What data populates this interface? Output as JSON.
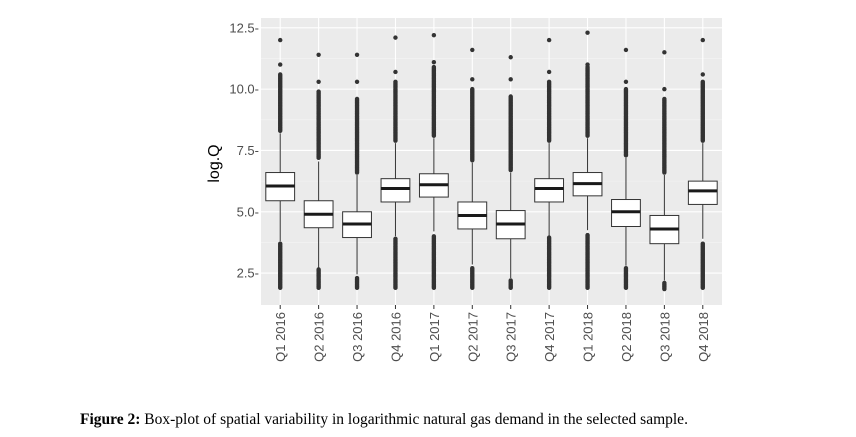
{
  "chart_data": {
    "type": "box",
    "ylabel": "log.Q",
    "xlabel": "",
    "ylim": [
      1.2,
      12.9
    ],
    "yticks": [
      2.5,
      5.0,
      7.5,
      10.0,
      12.5
    ],
    "ytick_labels": [
      "2.5-",
      "5.0-",
      "7.5-",
      "10.0-",
      "12.5-"
    ],
    "grid": true,
    "categories": [
      "Q1 2016",
      "Q2 2016",
      "Q3 2016",
      "Q4 2016",
      "Q1 2017",
      "Q2 2017",
      "Q3 2017",
      "Q4 2017",
      "Q1 2018",
      "Q2 2018",
      "Q3 2018",
      "Q4 2018"
    ],
    "boxes": [
      {
        "q1": 5.45,
        "median": 6.05,
        "q3": 6.6,
        "lower_whisker": 3.8,
        "upper_whisker": 8.2,
        "outliers_high": [
          8.3,
          8.6,
          9.0,
          9.4,
          9.8,
          10.2,
          10.6,
          11.0,
          12.0
        ],
        "outliers_low": [
          1.9,
          2.2,
          2.5,
          2.8,
          3.1,
          3.4,
          3.7
        ]
      },
      {
        "q1": 4.35,
        "median": 4.9,
        "q3": 5.45,
        "lower_whisker": 2.7,
        "upper_whisker": 7.05,
        "outliers_high": [
          7.2,
          7.6,
          8.0,
          8.4,
          8.8,
          9.2,
          9.5,
          9.9,
          10.3,
          11.4
        ],
        "outliers_low": [
          1.9,
          2.1,
          2.3,
          2.5,
          2.65
        ]
      },
      {
        "q1": 3.95,
        "median": 4.5,
        "q3": 5.0,
        "lower_whisker": 2.45,
        "upper_whisker": 6.5,
        "outliers_high": [
          6.6,
          7.0,
          7.4,
          7.8,
          8.2,
          8.6,
          9.0,
          9.6,
          10.3,
          11.4
        ],
        "outliers_low": [
          1.9,
          2.1,
          2.3
        ]
      },
      {
        "q1": 5.4,
        "median": 5.95,
        "q3": 6.35,
        "lower_whisker": 4.0,
        "upper_whisker": 7.8,
        "outliers_high": [
          7.9,
          8.3,
          8.7,
          9.1,
          9.5,
          9.9,
          10.3,
          10.7,
          12.1
        ],
        "outliers_low": [
          1.9,
          2.2,
          2.5,
          2.8,
          3.1,
          3.4,
          3.7,
          3.9
        ]
      },
      {
        "q1": 5.6,
        "median": 6.1,
        "q3": 6.55,
        "lower_whisker": 4.2,
        "upper_whisker": 8.0,
        "outliers_high": [
          8.1,
          8.5,
          8.9,
          9.3,
          9.7,
          10.1,
          10.5,
          10.9,
          11.1,
          12.2
        ],
        "outliers_low": [
          1.9,
          2.2,
          2.5,
          2.8,
          3.1,
          3.4,
          3.7,
          4.0
        ]
      },
      {
        "q1": 4.3,
        "median": 4.85,
        "q3": 5.4,
        "lower_whisker": 2.85,
        "upper_whisker": 7.0,
        "outliers_high": [
          7.1,
          7.5,
          7.9,
          8.3,
          8.7,
          9.1,
          9.5,
          10.0,
          10.4,
          11.6
        ],
        "outliers_low": [
          1.9,
          2.1,
          2.3,
          2.5,
          2.7
        ]
      },
      {
        "q1": 3.9,
        "median": 4.5,
        "q3": 5.05,
        "lower_whisker": 2.3,
        "upper_whisker": 6.6,
        "outliers_high": [
          6.7,
          7.1,
          7.5,
          7.9,
          8.3,
          8.6,
          9.0,
          9.7,
          10.4,
          11.3
        ],
        "outliers_low": [
          1.9,
          2.05,
          2.2
        ]
      },
      {
        "q1": 5.4,
        "median": 5.95,
        "q3": 6.35,
        "lower_whisker": 4.0,
        "upper_whisker": 7.8,
        "outliers_high": [
          7.9,
          8.3,
          8.7,
          9.1,
          9.5,
          9.9,
          10.3,
          10.7,
          12.0
        ],
        "outliers_low": [
          1.9,
          2.2,
          2.5,
          2.8,
          3.1,
          3.4,
          3.7,
          3.95
        ]
      },
      {
        "q1": 5.65,
        "median": 6.15,
        "q3": 6.6,
        "lower_whisker": 4.25,
        "upper_whisker": 8.0,
        "outliers_high": [
          8.1,
          8.5,
          8.9,
          9.3,
          9.7,
          10.1,
          10.5,
          10.9,
          11.0,
          12.3
        ],
        "outliers_low": [
          1.9,
          2.2,
          2.5,
          2.8,
          3.1,
          3.4,
          3.7,
          4.05
        ]
      },
      {
        "q1": 4.4,
        "median": 5.0,
        "q3": 5.5,
        "lower_whisker": 2.8,
        "upper_whisker": 7.2,
        "outliers_high": [
          7.3,
          7.7,
          8.1,
          8.5,
          8.9,
          9.3,
          9.6,
          10.0,
          10.3,
          11.6
        ],
        "outliers_low": [
          1.9,
          2.1,
          2.3,
          2.5,
          2.7
        ]
      },
      {
        "q1": 3.7,
        "median": 4.3,
        "q3": 4.85,
        "lower_whisker": 2.2,
        "upper_whisker": 6.5,
        "outliers_high": [
          6.6,
          7.0,
          7.4,
          7.8,
          8.2,
          8.6,
          9.0,
          9.6,
          10.0,
          11.5
        ],
        "outliers_low": [
          1.85,
          2.0,
          2.1
        ]
      },
      {
        "q1": 5.3,
        "median": 5.85,
        "q3": 6.25,
        "lower_whisker": 3.9,
        "upper_whisker": 7.8,
        "outliers_high": [
          7.9,
          8.3,
          8.7,
          9.1,
          9.5,
          9.9,
          10.3,
          10.6,
          12.0
        ],
        "outliers_low": [
          1.9,
          2.2,
          2.5,
          2.8,
          3.1,
          3.4,
          3.7
        ]
      }
    ],
    "colors": {
      "panel": "#ebebeb",
      "grid_major": "#ffffff",
      "grid_minor": "#f5f5f5",
      "box_fill": "#ffffff",
      "box_line": "#333333",
      "outlier": "#333333"
    }
  },
  "caption": {
    "label": "Figure 2:",
    "text": " Box-plot of spatial variability in logarithmic natural gas demand in the selected sample."
  }
}
